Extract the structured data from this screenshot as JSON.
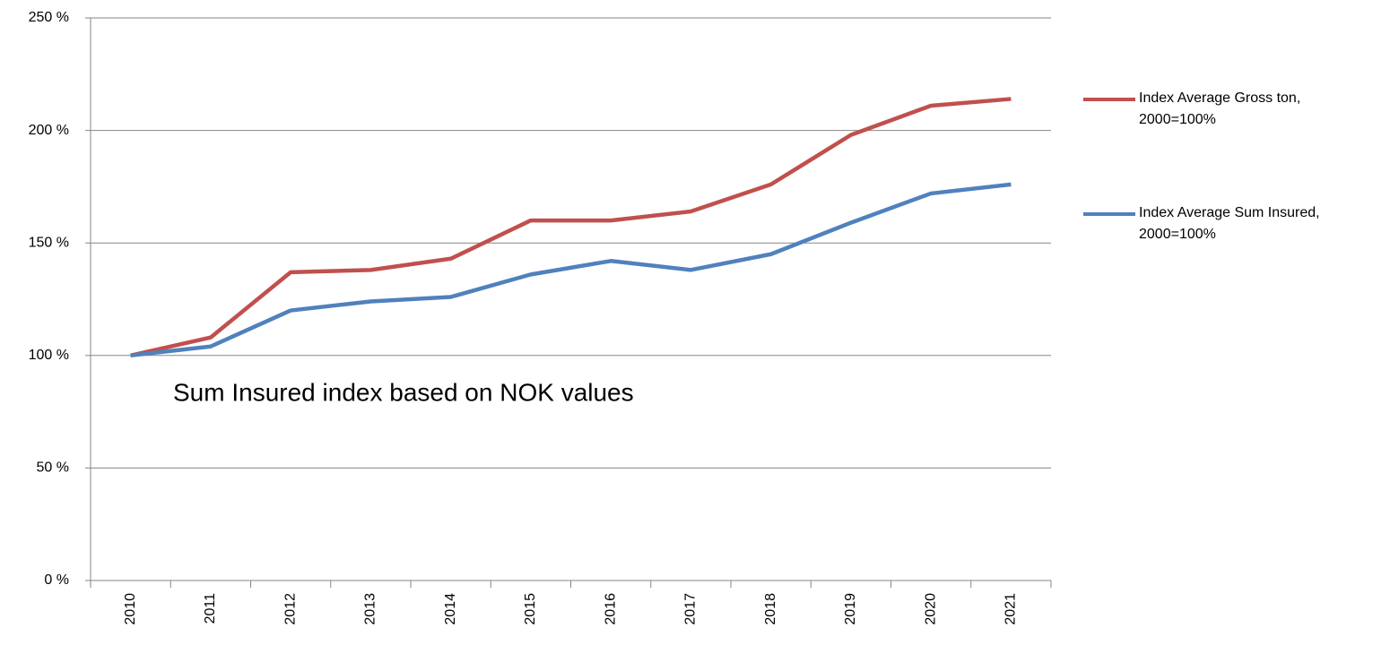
{
  "chart_data": {
    "type": "line",
    "annotation": "Sum Insured index based on NOK values",
    "categories": [
      "2010",
      "2011",
      "2012",
      "2013",
      "2014",
      "2015",
      "2016",
      "2017",
      "2018",
      "2019",
      "2020",
      "2021"
    ],
    "series": [
      {
        "name": "Index Average Gross ton, 2000=100%",
        "color": "#c0504d",
        "values": [
          100,
          108,
          137,
          138,
          143,
          160,
          160,
          164,
          176,
          198,
          211,
          214
        ]
      },
      {
        "name": "Index Average Sum Insured, 2000=100%",
        "color": "#4f81bd",
        "values": [
          100,
          104,
          120,
          124,
          126,
          136,
          142,
          138,
          145,
          159,
          172,
          176
        ]
      }
    ],
    "ylim": [
      0,
      250
    ],
    "yticks": [
      {
        "value": 0,
        "label": "0 %"
      },
      {
        "value": 50,
        "label": "50 %"
      },
      {
        "value": 100,
        "label": "100 %"
      },
      {
        "value": 150,
        "label": "150 %"
      },
      {
        "value": 200,
        "label": "200 %"
      },
      {
        "value": 250,
        "label": "250 %"
      }
    ],
    "grid": true,
    "legend": "right"
  }
}
